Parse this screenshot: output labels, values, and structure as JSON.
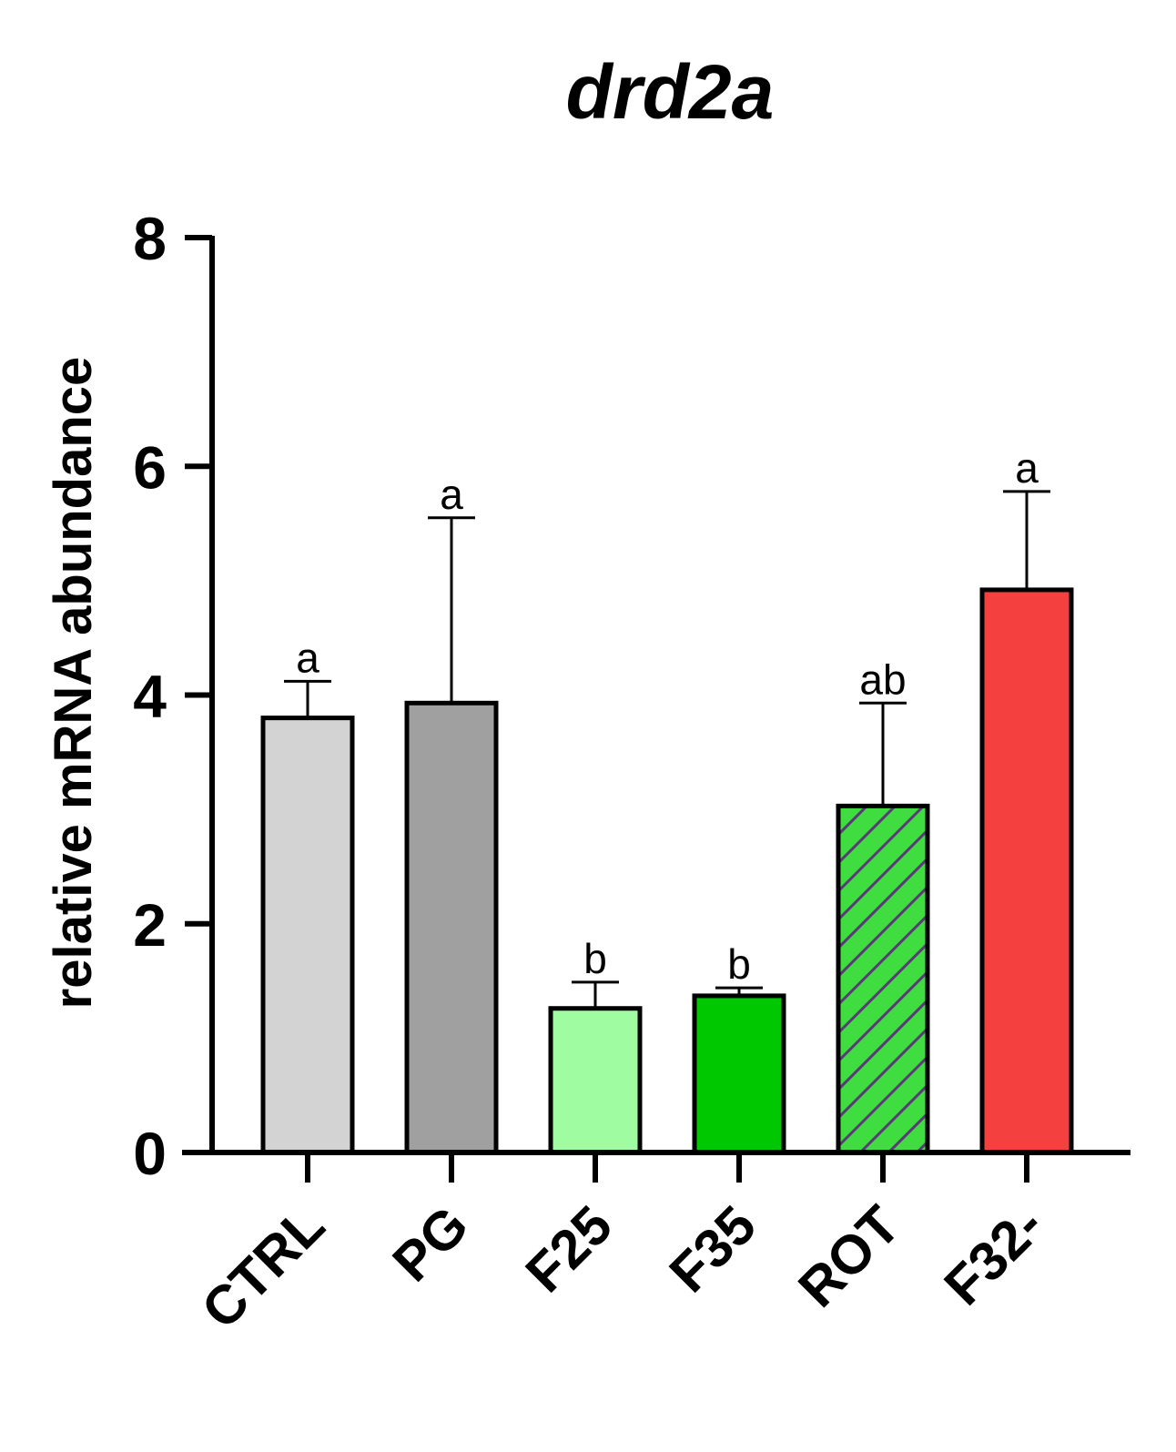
{
  "chart_data": {
    "type": "bar",
    "title": "drd2a",
    "xlabel": "",
    "ylabel": "relative mRNA abundance",
    "ylim": [
      0,
      8
    ],
    "yticks": [
      "0",
      "2",
      "4",
      "6",
      "8"
    ],
    "categories": [
      "CTRL",
      "PG",
      "F25",
      "F35",
      "ROT",
      "F32-"
    ],
    "values": [
      3.8,
      3.93,
      1.26,
      1.37,
      3.03,
      4.92
    ],
    "errors": [
      0.32,
      1.62,
      0.23,
      0.07,
      0.9,
      0.86
    ],
    "significance": [
      "a",
      "a",
      "b",
      "b",
      "ab",
      "a"
    ],
    "colors": [
      "#d3d3d3",
      "#a0a0a0",
      "#a0fca0",
      "#00c800",
      "#3fdd3f",
      "#f54040"
    ],
    "hatched": [
      false,
      false,
      false,
      false,
      true,
      false
    ],
    "hatch_color": "#5a3a78",
    "grid": false,
    "legend": "none"
  }
}
